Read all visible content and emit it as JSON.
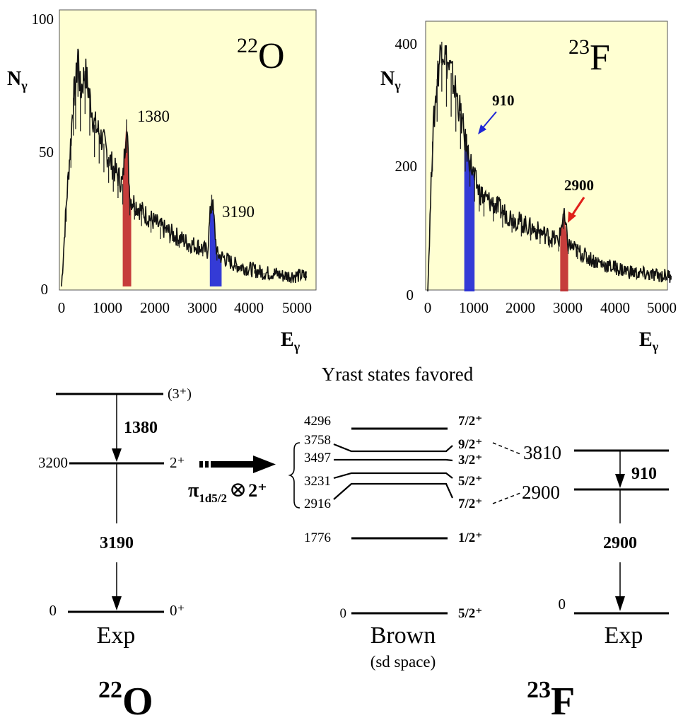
{
  "spectra": [
    {
      "id": "o22",
      "nucleus_mass": "22",
      "nucleus_symbol": "O",
      "ylabel_main": "N",
      "ylabel_sub": "γ",
      "xlabel_main": "E",
      "xlabel_sub": "γ",
      "x_ticks": [
        "0",
        "1000",
        "2000",
        "3000",
        "4000",
        "5000"
      ],
      "y_ticks": [
        "0",
        "50",
        "100"
      ],
      "peak_labels": [
        {
          "text": "1380",
          "x": 1380
        },
        {
          "text": "3190",
          "x": 3190
        }
      ]
    },
    {
      "id": "f23",
      "nucleus_mass": "23",
      "nucleus_symbol": "F",
      "ylabel_main": "N",
      "ylabel_sub": "γ",
      "xlabel_main": "E",
      "xlabel_sub": "γ",
      "x_ticks": [
        "0",
        "1000",
        "2000",
        "3000",
        "4000",
        "5000"
      ],
      "y_ticks": [
        "0",
        "200",
        "400"
      ],
      "peak_labels": [
        {
          "text": "910",
          "x": 910
        },
        {
          "text": "2900",
          "x": 2900
        }
      ]
    }
  ],
  "chart_data": [
    {
      "type": "line",
      "xlim": [
        0,
        5200
      ],
      "ylim": [
        0,
        100
      ],
      "x_ticks": [
        0,
        1000,
        2000,
        3000,
        4000,
        5000
      ],
      "y_ticks": [
        0,
        50,
        100
      ],
      "grid": false,
      "background": "#ffffd2",
      "series": [
        {
          "x": [
            0,
            100,
            200,
            250,
            300,
            350,
            400,
            500,
            600,
            700,
            800,
            900,
            1000,
            1100,
            1200,
            1300,
            1380,
            1450,
            1550,
            1700,
            1900,
            2100,
            2300,
            2500,
            2700,
            2900,
            3000,
            3100,
            3190,
            3300,
            3500,
            3700,
            3900,
            4100,
            4300,
            4500,
            4700,
            4900,
            5200
          ],
          "y": [
            0,
            30,
            55,
            70,
            73,
            88,
            72,
            80,
            70,
            60,
            57,
            53,
            48,
            44,
            41,
            38,
            62,
            33,
            31,
            28,
            25,
            22,
            20,
            18,
            16,
            15,
            14,
            13,
            34,
            12,
            10,
            8,
            7,
            6,
            5,
            5,
            4,
            4,
            4
          ]
        }
      ],
      "highlights": [
        {
          "from": 1300,
          "to": 1480,
          "color": "#c0282a"
        },
        {
          "from": 3150,
          "to": 3400,
          "color": "#1e26d6"
        }
      ]
    },
    {
      "type": "line",
      "xlim": [
        0,
        5200
      ],
      "ylim": [
        0,
        450
      ],
      "x_ticks": [
        0,
        1000,
        2000,
        3000,
        4000,
        5000
      ],
      "y_ticks": [
        0,
        200,
        400
      ],
      "grid": false,
      "background": "#ffffd2",
      "series": [
        {
          "x": [
            0,
            100,
            200,
            300,
            400,
            500,
            600,
            700,
            800,
            900,
            1000,
            1100,
            1200,
            1400,
            1600,
            1800,
            2000,
            2200,
            2400,
            2600,
            2800,
            2900,
            3000,
            3200,
            3400,
            3600,
            3800,
            4000,
            4200,
            4400,
            4600,
            4800,
            5200
          ],
          "y": [
            0,
            240,
            340,
            400,
            370,
            350,
            320,
            285,
            240,
            210,
            180,
            160,
            150,
            140,
            128,
            118,
            110,
            102,
            95,
            88,
            80,
            125,
            75,
            65,
            55,
            48,
            42,
            38,
            34,
            30,
            28,
            26,
            25
          ]
        }
      ],
      "highlights": [
        {
          "from": 780,
          "to": 1000,
          "color": "#1e26d6"
        },
        {
          "from": 2830,
          "to": 3000,
          "color": "#c0282a"
        }
      ]
    }
  ],
  "scheme": {
    "title": "Yrast states favored",
    "o22": {
      "levels": [
        {
          "energy": "",
          "spin": "(3⁺)"
        },
        {
          "energy": "3200",
          "spin": "2⁺"
        },
        {
          "energy": "0",
          "spin": "0⁺"
        }
      ],
      "transitions": [
        "1380",
        "3190"
      ],
      "label": "Exp",
      "nucleus_mass": "22",
      "nucleus_symbol": "O"
    },
    "coupling": {
      "pi": "π",
      "sub": "1d5/2",
      "otimes": "⊗",
      "state": "2⁺"
    },
    "brown": {
      "levels": [
        {
          "energy": "4296",
          "spin": "7/2⁺"
        },
        {
          "energy": "3758",
          "spin": "9/2⁺"
        },
        {
          "energy": "3497",
          "spin": "3/2⁺"
        },
        {
          "energy": "3231",
          "spin": "5/2⁺"
        },
        {
          "energy": "2916",
          "spin": "7/2⁺"
        },
        {
          "energy": "1776",
          "spin": "1/2⁺"
        },
        {
          "energy": "0",
          "spin": "5/2⁺"
        }
      ],
      "label": "Brown",
      "sublabel": "(sd space)"
    },
    "f23": {
      "levels": [
        {
          "energy": "3810"
        },
        {
          "energy": "2900"
        },
        {
          "energy": "0"
        }
      ],
      "transitions": [
        "910",
        "2900"
      ],
      "label": "Exp",
      "nucleus_mass": "23",
      "nucleus_symbol": "F"
    },
    "colors": {
      "arrow_blue": "#1e26d6",
      "arrow_red": "#e0201a"
    }
  }
}
